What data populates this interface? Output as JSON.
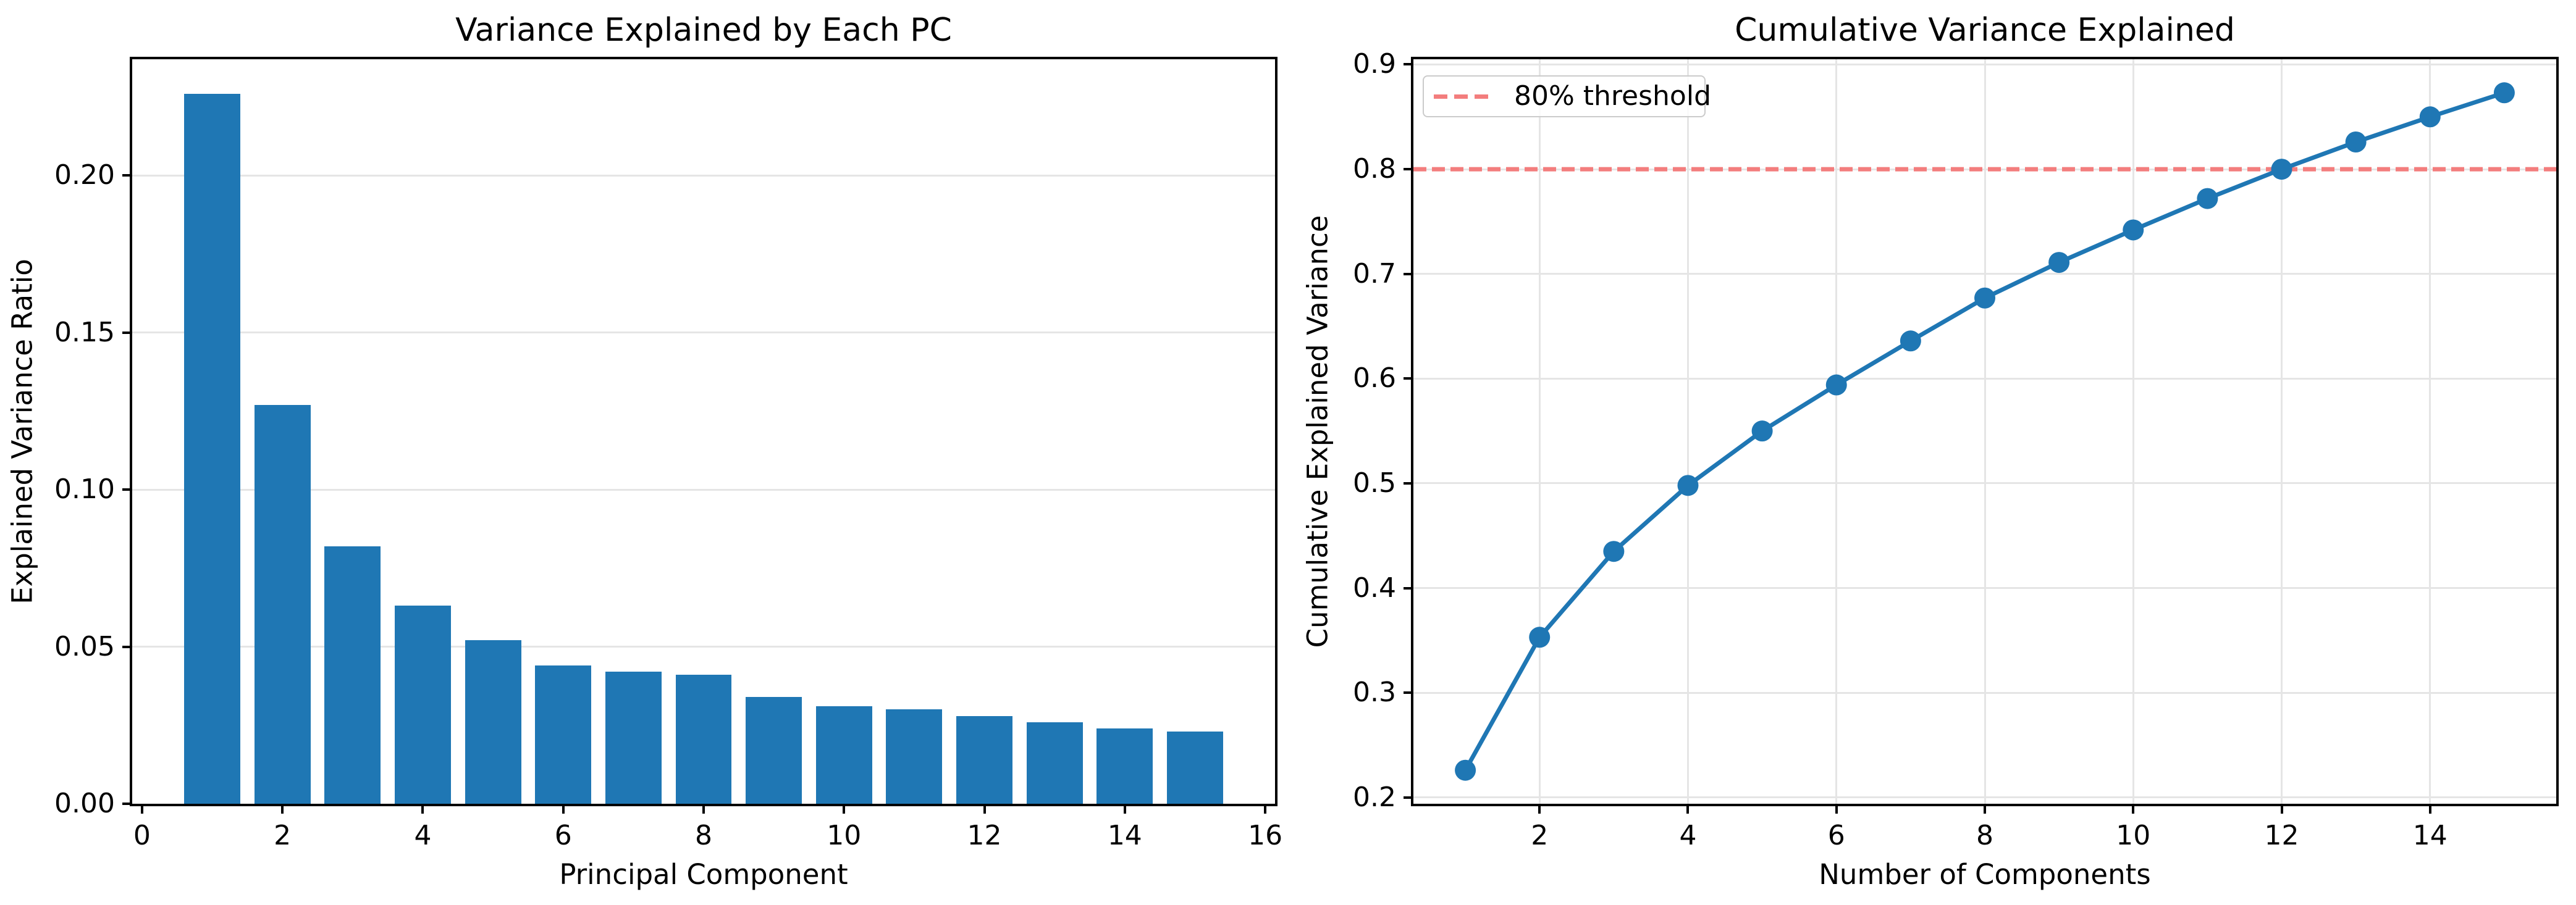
{
  "chart_data": [
    {
      "type": "bar",
      "title": "Variance Explained by Each PC",
      "xlabel": "Principal Component",
      "ylabel": "Explained Variance Ratio",
      "x": [
        1,
        2,
        3,
        4,
        5,
        6,
        7,
        8,
        9,
        10,
        11,
        12,
        13,
        14,
        15
      ],
      "values": [
        0.226,
        0.127,
        0.082,
        0.063,
        0.052,
        0.044,
        0.042,
        0.041,
        0.034,
        0.031,
        0.03,
        0.028,
        0.026,
        0.024,
        0.023
      ],
      "bar_color": "#1f77b4",
      "bar_width": 0.8,
      "xlim": [
        -0.14,
        16.14
      ],
      "ylim": [
        0,
        0.237
      ],
      "xticks": [
        0,
        2,
        4,
        6,
        8,
        10,
        12,
        14,
        16
      ],
      "yticks": [
        0,
        0.05,
        0.1,
        0.15,
        0.2
      ],
      "ytick_labels": [
        "0.00",
        "0.05",
        "0.10",
        "0.15",
        "0.20"
      ],
      "grid": "y"
    },
    {
      "type": "line",
      "title": "Cumulative Variance Explained",
      "xlabel": "Number of Components",
      "ylabel": "Cumulative Explained Variance",
      "x": [
        1,
        2,
        3,
        4,
        5,
        6,
        7,
        8,
        9,
        10,
        11,
        12,
        13,
        14,
        15
      ],
      "values": [
        0.226,
        0.353,
        0.435,
        0.498,
        0.55,
        0.594,
        0.636,
        0.677,
        0.711,
        0.742,
        0.772,
        0.8,
        0.826,
        0.85,
        0.873
      ],
      "line_color": "#1f77b4",
      "marker": "o",
      "threshold_value": 0.8,
      "threshold_color": "#f37d7d",
      "legend_label": "80% threshold",
      "legend_position": "upper left",
      "xlim": [
        0.3,
        15.7
      ],
      "ylim": [
        0.194,
        0.905
      ],
      "xticks": [
        2,
        4,
        6,
        8,
        10,
        12,
        14
      ],
      "yticks": [
        0.2,
        0.3,
        0.4,
        0.5,
        0.6,
        0.7,
        0.8,
        0.9
      ],
      "ytick_labels": [
        "0.2",
        "0.3",
        "0.4",
        "0.5",
        "0.6",
        "0.7",
        "0.8",
        "0.9"
      ],
      "grid": "both"
    }
  ]
}
